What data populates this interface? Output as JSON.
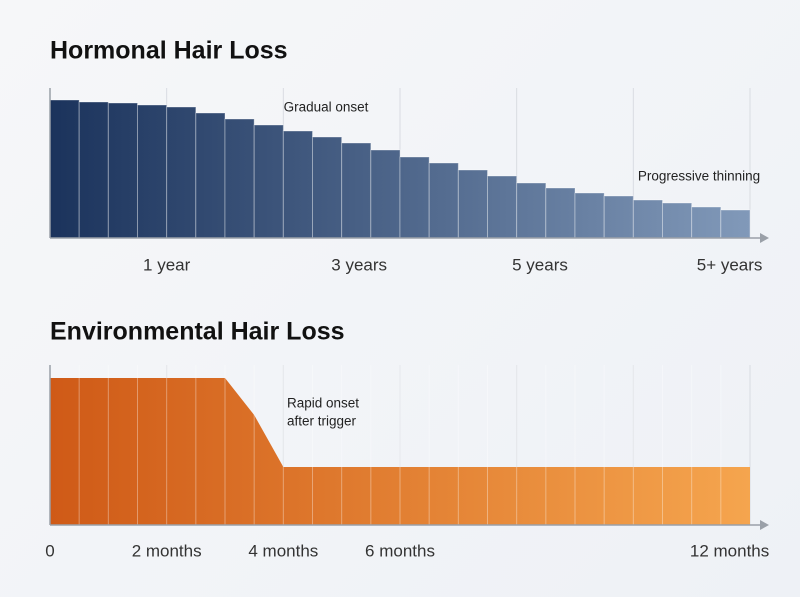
{
  "chart_data": [
    {
      "type": "bar",
      "title": "Hormonal Hair Loss",
      "values": [
        138,
        136,
        135,
        133,
        131,
        125,
        119,
        113,
        107,
        101,
        95,
        88,
        81,
        75,
        68,
        62,
        55,
        50,
        45,
        42,
        38,
        35,
        31,
        28
      ],
      "colors": [
        "#1b335c",
        "#8199b9"
      ],
      "ylim": [
        0,
        150
      ],
      "xlim": [
        0,
        24
      ],
      "xticks": [
        {
          "value": 4,
          "label": "1 year"
        },
        {
          "value": 10.6,
          "label": "3 years"
        },
        {
          "value": 16.8,
          "label": "5 years"
        },
        {
          "value": 23.3,
          "label": "5+ years"
        }
      ],
      "annotations": [
        [
          "Gradual onset"
        ],
        [
          "Progressive thinning"
        ]
      ]
    },
    {
      "type": "area",
      "title": "Environmental Hair Loss",
      "x": [
        0,
        6,
        7,
        8,
        24
      ],
      "values": [
        147,
        147,
        110,
        58,
        58
      ],
      "colors": [
        "#cf5a17",
        "#f5a54e"
      ],
      "ylim": [
        0,
        160
      ],
      "xlim": [
        0,
        24
      ],
      "xticks": [
        {
          "value": 0,
          "label": "0"
        },
        {
          "value": 4,
          "label": "2 months"
        },
        {
          "value": 8,
          "label": "4 months"
        },
        {
          "value": 12,
          "label": "6 months"
        },
        {
          "value": 23.3,
          "label": "12 months"
        }
      ],
      "annotations": [
        [
          "Rapid onset",
          "after trigger"
        ]
      ]
    }
  ]
}
